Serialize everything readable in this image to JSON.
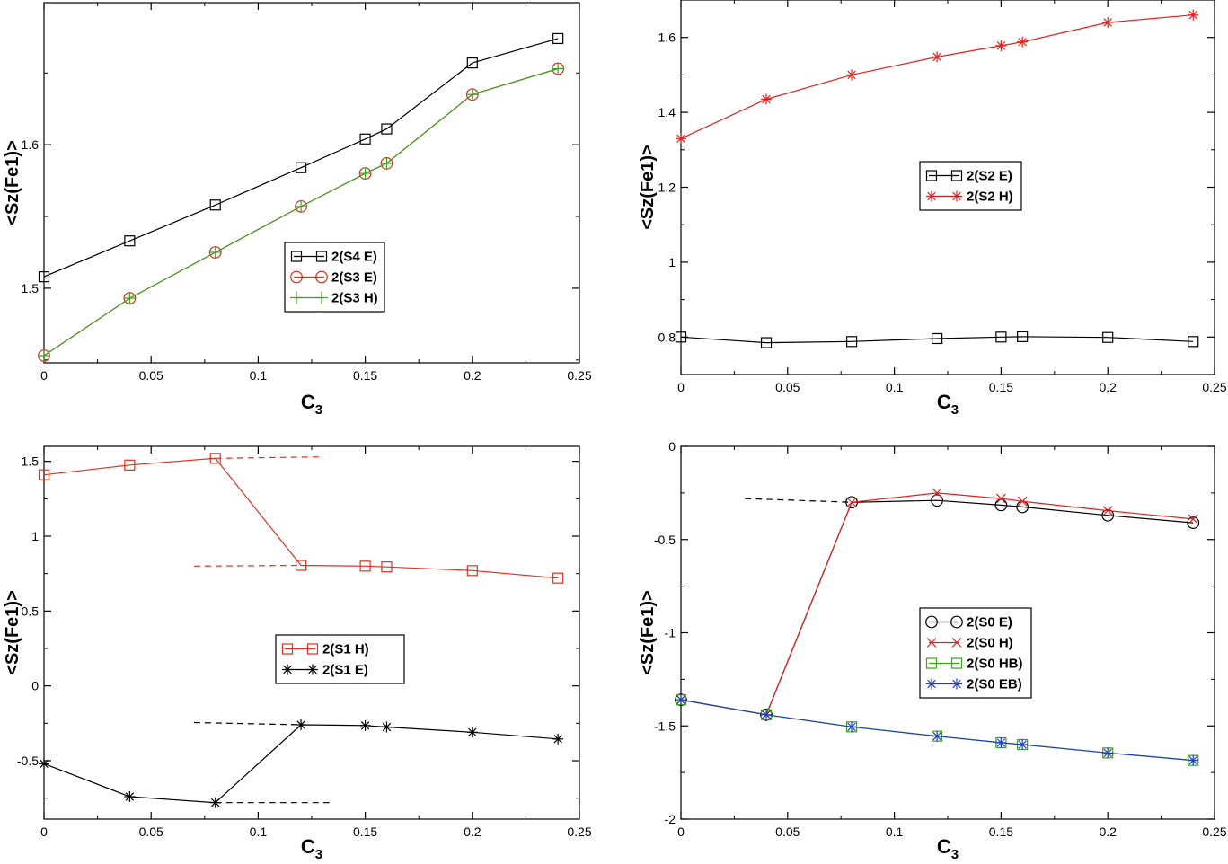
{
  "chart_data": [
    {
      "type": "line",
      "xlabel": "C",
      "xlabel_sub": "3",
      "ylabel": "<Sz(Fe1)>",
      "xlim": [
        0,
        0.25
      ],
      "ylim": [
        1.448,
        1.699
      ],
      "xticks": [
        0,
        0.05,
        0.1,
        0.15,
        0.2,
        0.25
      ],
      "xtick_labels": [
        "0",
        "0.05",
        "0.1",
        "0.15",
        "0.2",
        "0.25"
      ],
      "yticks": [
        1.5,
        1.6
      ],
      "ytick_labels": [
        "1.5",
        "1.6"
      ],
      "x": [
        0,
        0.04,
        0.08,
        0.12,
        0.15,
        0.16,
        0.2,
        0.24
      ],
      "series": [
        {
          "name": "2(S4 E)",
          "color": "#000000",
          "marker": "square",
          "values": [
            1.508,
            1.533,
            1.558,
            1.584,
            1.604,
            1.611,
            1.657,
            1.674
          ]
        },
        {
          "name": "2(S3 E)",
          "color": "#d03020",
          "marker": "circle",
          "values": [
            1.453,
            1.493,
            1.525,
            1.557,
            1.58,
            1.587,
            1.635,
            1.653
          ]
        },
        {
          "name": "2(S3 H)",
          "color": "#40a020",
          "marker": "plus",
          "values": [
            1.453,
            1.493,
            1.525,
            1.557,
            1.58,
            1.587,
            1.635,
            1.653
          ]
        }
      ],
      "legend_position": "center-right"
    },
    {
      "type": "line",
      "xlabel": "C",
      "xlabel_sub": "3",
      "ylabel": "<Sz(Fe1)>",
      "xlim": [
        0,
        0.25
      ],
      "ylim": [
        0.7,
        1.7
      ],
      "xticks": [
        0,
        0.05,
        0.1,
        0.15,
        0.2,
        0.25
      ],
      "xtick_labels": [
        "0",
        "0.05",
        "0.1",
        "0.15",
        "0.2",
        "0.25"
      ],
      "yticks": [
        0.8,
        1,
        1.2,
        1.4,
        1.6
      ],
      "ytick_labels": [
        "0.8",
        "1",
        "1.2",
        "1.4",
        "1.6"
      ],
      "x": [
        0,
        0.04,
        0.08,
        0.12,
        0.15,
        0.16,
        0.2,
        0.24
      ],
      "series": [
        {
          "name": "2(S2 E)",
          "color": "#000000",
          "marker": "square",
          "values": [
            0.8,
            0.785,
            0.788,
            0.796,
            0.8,
            0.801,
            0.799,
            0.788
          ]
        },
        {
          "name": "2(S2 H)",
          "color": "#e02020",
          "marker": "star",
          "values": [
            1.33,
            1.435,
            1.5,
            1.548,
            1.578,
            1.588,
            1.64,
            1.66
          ]
        }
      ],
      "legend_position": "center"
    },
    {
      "type": "line",
      "xlabel": "C",
      "xlabel_sub": "3",
      "ylabel": "<Sz(Fe1)>",
      "xlim": [
        0,
        0.25
      ],
      "ylim": [
        -0.89,
        1.6
      ],
      "xticks": [
        0,
        0.05,
        0.1,
        0.15,
        0.2,
        0.25
      ],
      "xtick_labels": [
        "0",
        "0.05",
        "0.1",
        "0.15",
        "0.2",
        "0.25"
      ],
      "yticks": [
        -0.5,
        0,
        0.5,
        1,
        1.5
      ],
      "ytick_labels": [
        "-0.5",
        "0",
        "0.5",
        "1",
        "1.5"
      ],
      "x": [
        0,
        0.04,
        0.08,
        0.12,
        0.15,
        0.16,
        0.2,
        0.24
      ],
      "series": [
        {
          "name": "2(S1 H)",
          "color": "#e03020",
          "marker": "square",
          "values": [
            1.41,
            1.475,
            1.52,
            0.805,
            0.8,
            0.795,
            0.77,
            0.72
          ]
        },
        {
          "name": "2(S1 E)",
          "color": "#000000",
          "marker": "star",
          "values": [
            -0.52,
            -0.74,
            -0.78,
            -0.26,
            -0.265,
            -0.275,
            -0.31,
            -0.355
          ]
        }
      ],
      "dashed_lines": [
        {
          "color": "#e03020",
          "x": [
            0.08,
            0.13
          ],
          "y": [
            1.52,
            1.53
          ]
        },
        {
          "color": "#e03020",
          "x": [
            0.07,
            0.12
          ],
          "y": [
            0.8,
            0.805
          ]
        },
        {
          "color": "#000000",
          "x": [
            0.07,
            0.12
          ],
          "y": [
            -0.245,
            -0.26
          ]
        },
        {
          "color": "#000000",
          "x": [
            0.08,
            0.135
          ],
          "y": [
            -0.78,
            -0.78
          ]
        }
      ],
      "legend_position": "center-right"
    },
    {
      "type": "line",
      "xlabel": "C",
      "xlabel_sub": "3",
      "ylabel": "<Sz(Fe1)>",
      "xlim": [
        0,
        0.25
      ],
      "ylim": [
        -2,
        0
      ],
      "xticks": [
        0,
        0.05,
        0.1,
        0.15,
        0.2,
        0.25
      ],
      "xtick_labels": [
        "0",
        "0.05",
        "0.1",
        "0.15",
        "0.2",
        "0.25"
      ],
      "yticks": [
        -2,
        -1.5,
        -1,
        -0.5,
        0
      ],
      "ytick_labels": [
        "-2",
        "-1.5",
        "-1",
        "-0.5",
        "0"
      ],
      "x": [
        0,
        0.04,
        0.08,
        0.12,
        0.15,
        0.16,
        0.2,
        0.24
      ],
      "series": [
        {
          "name": "2(S0 E)",
          "color": "#000000",
          "marker": "circle",
          "values": [
            -1.36,
            -1.44,
            -0.3,
            -0.29,
            -0.315,
            -0.325,
            -0.37,
            -0.41
          ]
        },
        {
          "name": "2(S0 H)",
          "color": "#e02020",
          "marker": "x",
          "values": [
            -1.36,
            -1.44,
            -0.3,
            -0.25,
            -0.28,
            -0.295,
            -0.345,
            -0.39
          ]
        },
        {
          "name": "2(S0 HB)",
          "color": "#40a020",
          "marker": "square",
          "values": [
            -1.36,
            -1.44,
            -1.505,
            -1.555,
            -1.59,
            -1.6,
            -1.645,
            -1.685
          ]
        },
        {
          "name": "2(S0 EB)",
          "color": "#2040c0",
          "marker": "star",
          "values": [
            -1.36,
            -1.44,
            -1.505,
            -1.555,
            -1.59,
            -1.6,
            -1.645,
            -1.685
          ]
        }
      ],
      "dashed_lines": [
        {
          "color": "#000000",
          "x": [
            0.03,
            0.08
          ],
          "y": [
            -0.28,
            -0.3
          ]
        }
      ],
      "legend_position": "center-right"
    }
  ]
}
